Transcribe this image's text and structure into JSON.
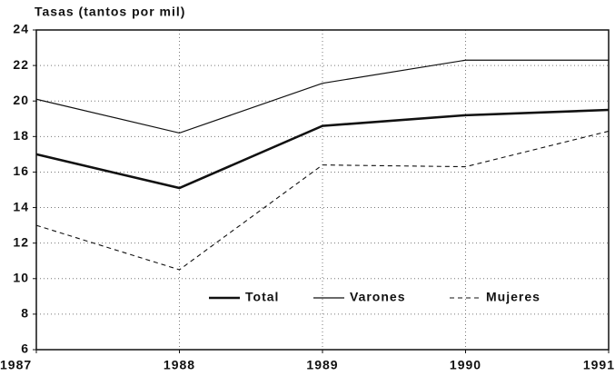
{
  "chart_data": {
    "type": "line",
    "y_label": "Tasas (tantos por mil)",
    "x": [
      1987,
      1988,
      1989,
      1990,
      1991
    ],
    "xlim": [
      1987,
      1991
    ],
    "xticks": [
      1987,
      1988,
      1989,
      1990,
      1991
    ],
    "ylim": [
      6,
      24
    ],
    "yticks": [
      6,
      8,
      10,
      12,
      14,
      16,
      18,
      20,
      22,
      24
    ],
    "grid": true,
    "series": [
      {
        "name": "Total",
        "color": "#111111",
        "line_style": "bold",
        "values": [
          17.0,
          15.1,
          18.6,
          19.2,
          19.5
        ]
      },
      {
        "name": "Varones",
        "color": "#111111",
        "line_style": "solid",
        "values": [
          20.1,
          18.2,
          21.0,
          22.3,
          22.3
        ]
      },
      {
        "name": "Mujeres",
        "color": "#111111",
        "line_style": "dashed",
        "values": [
          13.0,
          10.5,
          16.4,
          16.3,
          18.3
        ]
      }
    ]
  }
}
